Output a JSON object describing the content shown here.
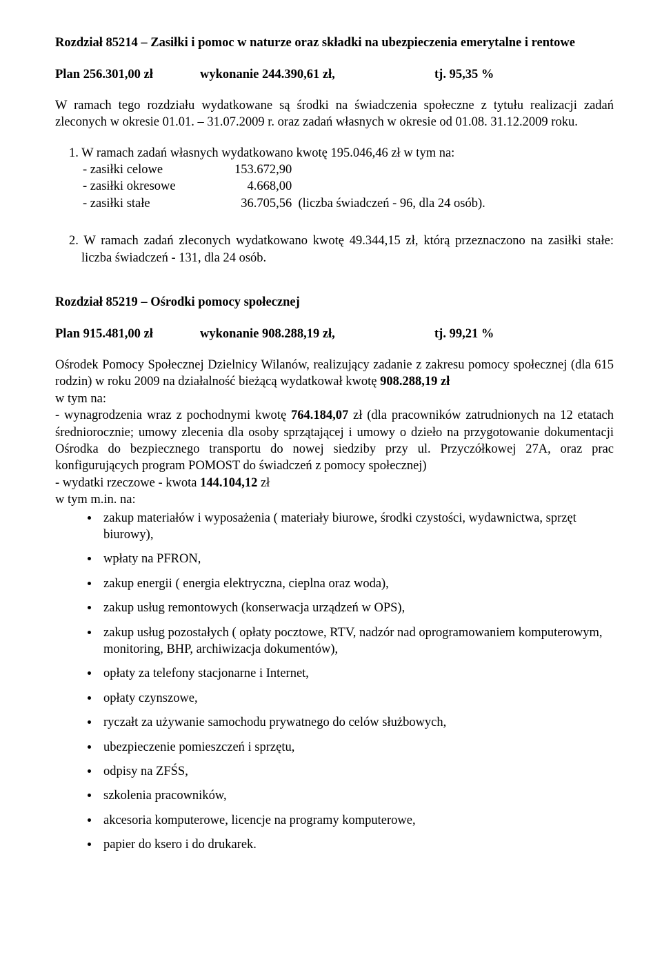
{
  "section1": {
    "title": "Rozdział 85214 – Zasiłki  i pomoc w naturze oraz składki na ubezpieczenia emerytalne i rentowe",
    "plan_label": "Plan  256.301,00 zł",
    "exec_label": "wykonanie  244.390,61 zł,",
    "pct": "tj.  95,35 %",
    "intro": "W ramach tego rozdziału wydatkowane są środki na świadczenia społeczne z tytułu realizacji zadań zleconych w okresie 01.01. – 31.07.2009 r. oraz zadań własnych w okresie od 01.08. 31.12.2009 roku.",
    "item1_lead": "1. W ramach zadań własnych wydatkowano kwotę 195.046,46 zł w tym na:",
    "breakdown": {
      "row1_lbl": "- zasiłki celowe",
      "row1_val": "153.672,90",
      "row2_lbl": "- zasiłki okresowe",
      "row2_val": "    4.668,00",
      "row3_lbl": "- zasiłki stałe",
      "row3_val": "  36.705,56  (liczba świadczeń - 96, dla 24 osób)."
    },
    "item2": "2. W ramach zadań zleconych wydatkowano kwotę 49.344,15 zł, którą przeznaczono na zasiłki stałe:  liczba świadczeń -  131, dla 24 osób."
  },
  "section2": {
    "title": "Rozdział  85219 – Ośrodki pomocy społecznej",
    "plan_label": "Plan  915.481,00 zł",
    "exec_label": "wykonanie   908.288,19  zł,",
    "pct": "tj.  99,21 %",
    "para_pre": "Ośrodek Pomocy Społecznej Dzielnicy Wilanów, realizujący  zadanie z zakresu pomocy społecznej (dla 615 rodzin) w roku 2009 na działalność bieżącą wydatkował kwotę ",
    "para_amount": "908.288,19 zł",
    "line_wtym": "w tym na:",
    "line_wynag_pre": "- wynagrodzenia wraz z pochodnymi kwotę ",
    "line_wynag_amount": "764.184,07",
    "line_wynag_post": " zł (dla pracowników zatrudnionych na 12 etatach średniorocznie; umowy zlecenia dla osoby sprzątającej i umowy o dzieło na przygotowanie dokumentacji Ośrodka do bezpiecznego transportu do nowej siedziby przy ul. Przyczółkowej 27A, oraz prac konfigurujących program POMOST do świadczeń z pomocy społecznej)",
    "line_rzeczowe_pre": "- wydatki rzeczowe - kwota ",
    "line_rzeczowe_amount": "144.104,12",
    "line_rzeczowe_post": " zł",
    "line_wtymmin": " w tym m.in. na:",
    "bullets": [
      "zakup materiałów i wyposażenia ( materiały biurowe, środki czystości, wydawnictwa, sprzęt biurowy),",
      "wpłaty na PFRON,",
      "zakup energii ( energia elektryczna, cieplna oraz woda),",
      "zakup usług remontowych (konserwacja urządzeń w OPS),",
      "zakup usług pozostałych ( opłaty pocztowe, RTV,  nadzór nad oprogramowaniem komputerowym, monitoring, BHP, archiwizacja dokumentów),",
      "opłaty za telefony stacjonarne i Internet,",
      "opłaty czynszowe,",
      "ryczałt za używanie samochodu prywatnego do celów służbowych,",
      "ubezpieczenie pomieszczeń i sprzętu,",
      "odpisy na ZFŚS,",
      "szkolenia pracowników,",
      "akcesoria komputerowe, licencje na programy komputerowe,",
      "papier do ksero i do  drukarek."
    ]
  }
}
